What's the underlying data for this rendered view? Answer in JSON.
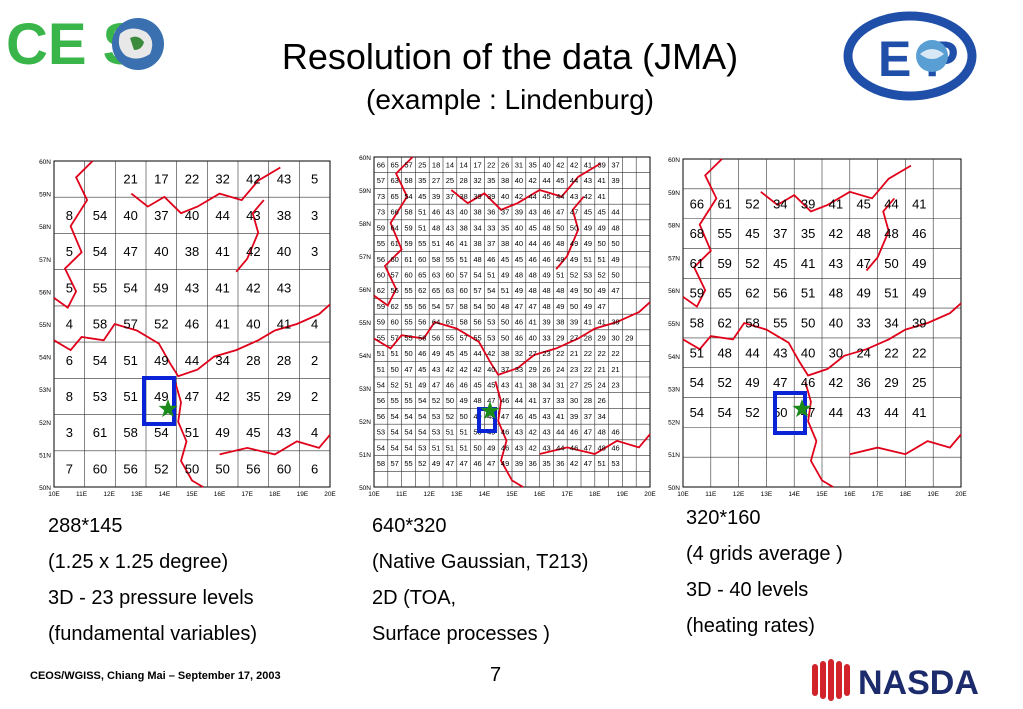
{
  "header": {
    "title": "Resolution of the data (JMA)",
    "subtitle": "(example : Lindenburg)",
    "logo_left_text": "CE S",
    "logo_right_text": "E P"
  },
  "maps": [
    {
      "id": "coarse",
      "grid_cols": 9,
      "grid_rows": 9,
      "lat_labels": [
        "60N",
        "59N",
        "58N",
        "57N",
        "56N",
        "55N",
        "54N",
        "53N",
        "52N",
        "51N",
        "50N"
      ],
      "lon_labels": [
        "10E",
        "11E",
        "12E",
        "13E",
        "14E",
        "15E",
        "16E",
        "17E",
        "18E",
        "19E",
        "20E"
      ],
      "rows": [
        [
          "",
          "",
          "21",
          "17",
          "22",
          "32",
          "42",
          "43",
          "5"
        ],
        [
          "8",
          "54",
          "40",
          "37",
          "40",
          "44",
          "43",
          "38",
          "3"
        ],
        [
          "5",
          "54",
          "47",
          "40",
          "38",
          "41",
          "42",
          "40",
          "3"
        ],
        [
          "5",
          "55",
          "54",
          "49",
          "43",
          "41",
          "42",
          "43",
          ""
        ],
        [
          "4",
          "58",
          "57",
          "52",
          "46",
          "41",
          "40",
          "41",
          "4"
        ],
        [
          "6",
          "54",
          "51",
          "49",
          "44",
          "34",
          "28",
          "28",
          "2"
        ],
        [
          "8",
          "53",
          "51",
          "49",
          "47",
          "42",
          "35",
          "29",
          "2"
        ],
        [
          "3",
          "61",
          "58",
          "54",
          "51",
          "49",
          "45",
          "43",
          "4"
        ],
        [
          "7",
          "60",
          "56",
          "52",
          "50",
          "50",
          "56",
          "60",
          "6"
        ]
      ]
    },
    {
      "id": "fine",
      "grid_cols": 20,
      "grid_rows": 21,
      "lat_labels": [
        "60N",
        "59N",
        "58N",
        "57N",
        "56N",
        "55N",
        "54N",
        "53N",
        "52N",
        "51N",
        "50N"
      ],
      "lon_labels": [
        "10E",
        "11E",
        "12E",
        "13E",
        "14E",
        "15E",
        "16E",
        "17E",
        "18E",
        "19E",
        "20E"
      ],
      "rows": [
        [
          "66",
          "65",
          "57",
          "25",
          "18",
          "14",
          "14",
          "17",
          "22",
          "26",
          "31",
          "35",
          "40",
          "42",
          "42",
          "41",
          "39",
          "37",
          "",
          ""
        ],
        [
          "57",
          "63",
          "58",
          "35",
          "27",
          "25",
          "28",
          "32",
          "35",
          "38",
          "40",
          "42",
          "44",
          "45",
          "44",
          "43",
          "41",
          "39",
          "",
          ""
        ],
        [
          "73",
          "65",
          "54",
          "45",
          "39",
          "37",
          "38",
          "39",
          "39",
          "40",
          "42",
          "44",
          "45",
          "44",
          "43",
          "42",
          "41",
          "",
          "",
          ""
        ],
        [
          "73",
          "66",
          "58",
          "51",
          "46",
          "43",
          "40",
          "38",
          "36",
          "37",
          "39",
          "43",
          "46",
          "47",
          "47",
          "45",
          "45",
          "44",
          "",
          ""
        ],
        [
          "59",
          "64",
          "59",
          "51",
          "48",
          "43",
          "38",
          "34",
          "33",
          "35",
          "40",
          "45",
          "48",
          "50",
          "50",
          "49",
          "49",
          "48",
          "",
          ""
        ],
        [
          "55",
          "61",
          "59",
          "55",
          "51",
          "46",
          "41",
          "38",
          "37",
          "38",
          "40",
          "44",
          "46",
          "48",
          "49",
          "49",
          "50",
          "50",
          "",
          ""
        ],
        [
          "56",
          "60",
          "61",
          "60",
          "58",
          "55",
          "51",
          "48",
          "46",
          "45",
          "45",
          "46",
          "46",
          "48",
          "49",
          "51",
          "51",
          "49",
          "",
          ""
        ],
        [
          "60",
          "57",
          "60",
          "65",
          "63",
          "60",
          "57",
          "54",
          "51",
          "49",
          "48",
          "48",
          "49",
          "51",
          "52",
          "53",
          "52",
          "50",
          "",
          ""
        ],
        [
          "62",
          "56",
          "55",
          "62",
          "65",
          "63",
          "60",
          "57",
          "54",
          "51",
          "49",
          "48",
          "48",
          "48",
          "49",
          "50",
          "49",
          "47",
          "",
          ""
        ],
        [
          "59",
          "62",
          "55",
          "56",
          "54",
          "57",
          "58",
          "54",
          "50",
          "48",
          "47",
          "47",
          "48",
          "49",
          "50",
          "49",
          "47",
          "",
          "",
          ""
        ],
        [
          "59",
          "60",
          "55",
          "56",
          "64",
          "61",
          "58",
          "56",
          "53",
          "50",
          "46",
          "41",
          "39",
          "38",
          "39",
          "41",
          "41",
          "39",
          "",
          ""
        ],
        [
          "55",
          "57",
          "55",
          "58",
          "56",
          "55",
          "57",
          "55",
          "53",
          "50",
          "46",
          "40",
          "33",
          "29",
          "27",
          "28",
          "29",
          "30",
          "29",
          ""
        ],
        [
          "51",
          "51",
          "50",
          "46",
          "49",
          "45",
          "45",
          "44",
          "42",
          "38",
          "32",
          "27",
          "23",
          "22",
          "21",
          "22",
          "22",
          "22",
          "",
          ""
        ],
        [
          "51",
          "50",
          "47",
          "45",
          "43",
          "42",
          "42",
          "42",
          "40",
          "37",
          "33",
          "29",
          "26",
          "24",
          "23",
          "22",
          "21",
          "21",
          "",
          ""
        ],
        [
          "54",
          "52",
          "51",
          "49",
          "47",
          "46",
          "46",
          "45",
          "45",
          "43",
          "41",
          "38",
          "34",
          "31",
          "27",
          "25",
          "24",
          "23",
          "",
          ""
        ],
        [
          "56",
          "55",
          "55",
          "54",
          "52",
          "50",
          "49",
          "48",
          "47",
          "46",
          "44",
          "41",
          "37",
          "33",
          "30",
          "28",
          "26",
          "",
          "",
          ""
        ],
        [
          "56",
          "54",
          "54",
          "54",
          "53",
          "52",
          "50",
          "49",
          "48",
          "47",
          "46",
          "45",
          "43",
          "41",
          "39",
          "37",
          "34",
          "",
          "",
          ""
        ],
        [
          "53",
          "54",
          "54",
          "54",
          "53",
          "51",
          "51",
          "50",
          "49",
          "46",
          "43",
          "42",
          "43",
          "44",
          "46",
          "47",
          "48",
          "46",
          "",
          ""
        ],
        [
          "54",
          "54",
          "54",
          "53",
          "51",
          "51",
          "51",
          "50",
          "49",
          "46",
          "43",
          "42",
          "43",
          "44",
          "46",
          "47",
          "48",
          "46",
          "",
          ""
        ],
        [
          "58",
          "57",
          "55",
          "52",
          "49",
          "47",
          "47",
          "46",
          "47",
          "49",
          "39",
          "36",
          "35",
          "36",
          "42",
          "47",
          "51",
          "53",
          "",
          ""
        ],
        [
          "",
          "",
          "",
          "",
          "",
          "",
          "",
          "",
          "",
          "",
          "",
          "",
          "",
          "",
          "",
          "",
          "",
          "",
          "",
          ""
        ]
      ]
    },
    {
      "id": "mid",
      "grid_cols": 10,
      "grid_rows": 11,
      "lat_labels": [
        "60N",
        "59N",
        "58N",
        "57N",
        "56N",
        "55N",
        "54N",
        "53N",
        "52N",
        "51N",
        "50N"
      ],
      "lon_labels": [
        "10E",
        "11E",
        "12E",
        "13E",
        "14E",
        "15E",
        "16E",
        "17E",
        "18E",
        "19E",
        "20E"
      ],
      "rows": [
        [
          "",
          "",
          "",
          "",
          "",
          "",
          "",
          "",
          "",
          ""
        ],
        [
          "66",
          "61",
          "52",
          "34",
          "39",
          "41",
          "45",
          "44",
          "41",
          ""
        ],
        [
          "68",
          "55",
          "45",
          "37",
          "35",
          "42",
          "48",
          "48",
          "46",
          ""
        ],
        [
          "61",
          "59",
          "52",
          "45",
          "41",
          "43",
          "47",
          "50",
          "49",
          ""
        ],
        [
          "59",
          "65",
          "62",
          "56",
          "51",
          "48",
          "49",
          "51",
          "49",
          ""
        ],
        [
          "58",
          "62",
          "58",
          "55",
          "50",
          "40",
          "33",
          "34",
          "39",
          ""
        ],
        [
          "51",
          "48",
          "44",
          "43",
          "40",
          "30",
          "24",
          "22",
          "22",
          ""
        ],
        [
          "54",
          "52",
          "49",
          "47",
          "46",
          "42",
          "36",
          "29",
          "25",
          ""
        ],
        [
          "54",
          "54",
          "52",
          "50",
          "47",
          "44",
          "43",
          "44",
          "41",
          ""
        ],
        [
          "",
          "",
          "",
          "",
          "",
          "",
          "",
          "",
          "",
          ""
        ],
        [
          "",
          "",
          "",
          "",
          "",
          "",
          "",
          "",
          "",
          ""
        ]
      ]
    }
  ],
  "captions": {
    "left": [
      "288*145",
      "(1.25 x 1.25 degree)",
      "3D - 23 pressure levels",
      "(fundamental variables)"
    ],
    "middle": [
      "640*320",
      "(Native Gaussian, T213)",
      "2D (TOA,",
      "Surface processes )"
    ],
    "right": [
      "320*160",
      "(4 grids average )",
      "3D - 40 levels",
      "(heating rates)"
    ]
  },
  "footer": {
    "text": "CEOS/WGISS, Chiang Mai – September 17, 2003",
    "page_number": "7",
    "nasda_logo_text": "NASDA"
  },
  "colors": {
    "coastline": "#e0001a",
    "grid": "#000000",
    "marker_box": "#0a23d6",
    "star": "#1a8a1a",
    "ceos_text": "#39b54a",
    "ceop_blue": "#1f4fa8"
  }
}
